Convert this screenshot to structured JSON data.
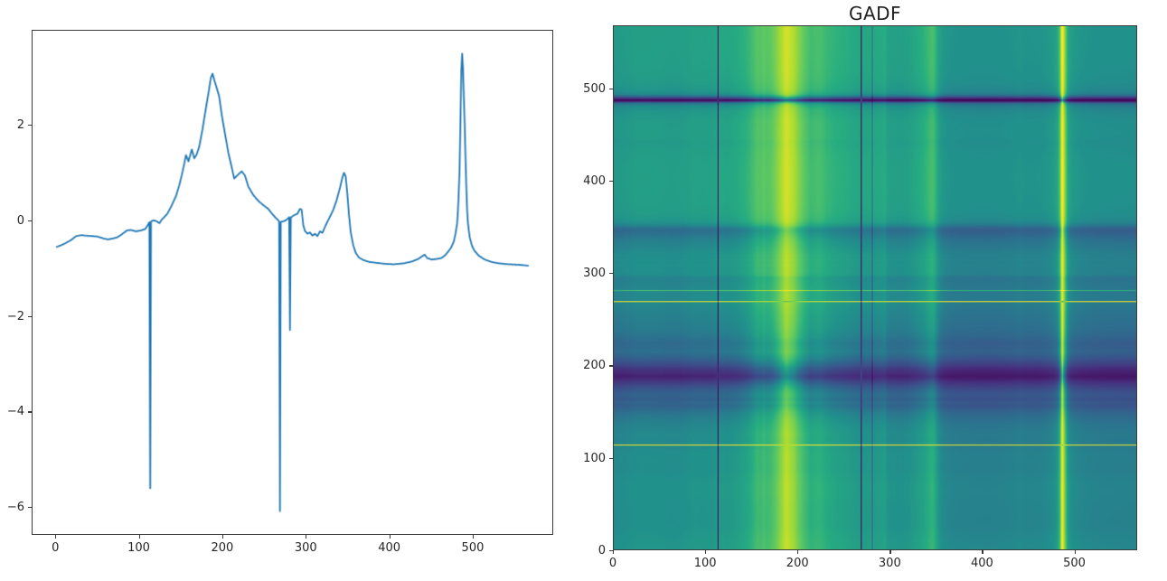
{
  "figure": {
    "background": "#ffffff",
    "axis_color": "#3c3c3c",
    "text_color": "#262626"
  },
  "chart_data": [
    {
      "type": "line",
      "title": "",
      "xlabel": "",
      "ylabel": "",
      "line_color": "#1f77b4",
      "line_width": 1.8,
      "x_tick_values": [
        0,
        100,
        200,
        300,
        400,
        500
      ],
      "x_tick_labels": [
        "0",
        "100",
        "200",
        "300",
        "400",
        "500"
      ],
      "y_tick_values": [
        2,
        0,
        -2,
        -4,
        -6
      ],
      "y_tick_labels": [
        "2",
        "0",
        "−2",
        "−4",
        "−6"
      ],
      "n_points": 569,
      "xlim": [
        -28.4,
        596.4
      ],
      "ylim": [
        -6.58,
        3.98
      ],
      "points": [
        [
          0,
          -0.56
        ],
        [
          6,
          -0.52
        ],
        [
          12,
          -0.47
        ],
        [
          18,
          -0.41
        ],
        [
          24,
          -0.33
        ],
        [
          30,
          -0.31
        ],
        [
          36,
          -0.32
        ],
        [
          44,
          -0.33
        ],
        [
          50,
          -0.34
        ],
        [
          57,
          -0.38
        ],
        [
          62,
          -0.4
        ],
        [
          68,
          -0.38
        ],
        [
          73,
          -0.36
        ],
        [
          79,
          -0.29
        ],
        [
          85,
          -0.21
        ],
        [
          90,
          -0.2
        ],
        [
          96,
          -0.23
        ],
        [
          102,
          -0.21
        ],
        [
          107,
          -0.18
        ],
        [
          110,
          -0.1
        ],
        [
          112,
          -0.04
        ],
        [
          113,
          -5.62
        ],
        [
          114,
          -0.02
        ],
        [
          117,
          0.0
        ],
        [
          121,
          -0.02
        ],
        [
          124,
          -0.06
        ],
        [
          127,
          0.02
        ],
        [
          130,
          0.07
        ],
        [
          134,
          0.15
        ],
        [
          139,
          0.32
        ],
        [
          144,
          0.51
        ],
        [
          148,
          0.74
        ],
        [
          151,
          0.95
        ],
        [
          154,
          1.19
        ],
        [
          156,
          1.37
        ],
        [
          159,
          1.24
        ],
        [
          163,
          1.49
        ],
        [
          166,
          1.3
        ],
        [
          169,
          1.39
        ],
        [
          172,
          1.55
        ],
        [
          176,
          1.92
        ],
        [
          179,
          2.25
        ],
        [
          183,
          2.67
        ],
        [
          186,
          3.0
        ],
        [
          188,
          3.08
        ],
        [
          190,
          2.95
        ],
        [
          193,
          2.78
        ],
        [
          196,
          2.6
        ],
        [
          199,
          2.22
        ],
        [
          203,
          1.81
        ],
        [
          207,
          1.42
        ],
        [
          211,
          1.12
        ],
        [
          214,
          0.88
        ],
        [
          218,
          0.95
        ],
        [
          223,
          1.03
        ],
        [
          227,
          0.94
        ],
        [
          231,
          0.71
        ],
        [
          237,
          0.53
        ],
        [
          243,
          0.41
        ],
        [
          249,
          0.32
        ],
        [
          255,
          0.24
        ],
        [
          259,
          0.15
        ],
        [
          263,
          0.07
        ],
        [
          266,
          0.02
        ],
        [
          268,
          -0.02
        ],
        [
          269,
          -6.1
        ],
        [
          270,
          -0.03
        ],
        [
          273,
          -0.02
        ],
        [
          276,
          0.0
        ],
        [
          279,
          0.05
        ],
        [
          280,
          0.07
        ],
        [
          281,
          -2.3
        ],
        [
          282,
          0.06
        ],
        [
          285,
          0.1
        ],
        [
          290,
          0.14
        ],
        [
          293,
          0.24
        ],
        [
          295,
          0.23
        ],
        [
          297,
          -0.1
        ],
        [
          299,
          -0.22
        ],
        [
          302,
          -0.28
        ],
        [
          305,
          -0.25
        ],
        [
          308,
          -0.32
        ],
        [
          311,
          -0.28
        ],
        [
          314,
          -0.33
        ],
        [
          317,
          -0.23
        ],
        [
          320,
          -0.26
        ],
        [
          324,
          -0.1
        ],
        [
          328,
          0.04
        ],
        [
          333,
          0.22
        ],
        [
          337,
          0.42
        ],
        [
          341,
          0.68
        ],
        [
          344,
          0.9
        ],
        [
          346,
          1.0
        ],
        [
          348,
          0.92
        ],
        [
          350,
          0.55
        ],
        [
          352,
          0.1
        ],
        [
          354,
          -0.25
        ],
        [
          357,
          -0.52
        ],
        [
          360,
          -0.68
        ],
        [
          364,
          -0.78
        ],
        [
          369,
          -0.83
        ],
        [
          376,
          -0.87
        ],
        [
          385,
          -0.89
        ],
        [
          395,
          -0.91
        ],
        [
          406,
          -0.92
        ],
        [
          418,
          -0.9
        ],
        [
          428,
          -0.86
        ],
        [
          435,
          -0.81
        ],
        [
          440,
          -0.75
        ],
        [
          443,
          -0.72
        ],
        [
          446,
          -0.79
        ],
        [
          451,
          -0.82
        ],
        [
          457,
          -0.81
        ],
        [
          463,
          -0.79
        ],
        [
          467,
          -0.74
        ],
        [
          471,
          -0.66
        ],
        [
          475,
          -0.56
        ],
        [
          478,
          -0.44
        ],
        [
          480,
          -0.28
        ],
        [
          482,
          -0.07
        ],
        [
          483,
          0.2
        ],
        [
          484,
          0.6
        ],
        [
          485,
          1.1
        ],
        [
          486,
          2.1
        ],
        [
          487,
          3.15
        ],
        [
          488,
          3.5
        ],
        [
          489,
          3.2
        ],
        [
          490,
          2.6
        ],
        [
          491,
          2.05
        ],
        [
          492,
          1.35
        ],
        [
          493,
          0.72
        ],
        [
          494,
          0.22
        ],
        [
          495,
          -0.06
        ],
        [
          497,
          -0.35
        ],
        [
          500,
          -0.54
        ],
        [
          503,
          -0.64
        ],
        [
          508,
          -0.74
        ],
        [
          515,
          -0.82
        ],
        [
          523,
          -0.87
        ],
        [
          532,
          -0.9
        ],
        [
          544,
          -0.92
        ],
        [
          556,
          -0.93
        ],
        [
          568,
          -0.95
        ]
      ]
    },
    {
      "type": "heatmap",
      "title": "GADF",
      "xlabel": "",
      "ylabel": "",
      "x_tick_values": [
        0,
        100,
        200,
        300,
        400,
        500
      ],
      "x_tick_labels": [
        "0",
        "100",
        "200",
        "300",
        "400",
        "500"
      ],
      "y_tick_values": [
        0,
        100,
        200,
        300,
        400,
        500
      ],
      "y_tick_labels": [
        "0",
        "100",
        "200",
        "300",
        "400",
        "500"
      ],
      "n": 569,
      "vmin": -1,
      "vmax": 1,
      "origin": "lower",
      "colormap": "viridis",
      "matrix_rule": "GADF[i][j] = sin(acos(s_i) - acos(s_j)), s = series of chart 0 min-max scaled to [-1,1]",
      "viridis_stops": [
        [
          0.0,
          "#440154"
        ],
        [
          0.125,
          "#472d7b"
        ],
        [
          0.25,
          "#3b528b"
        ],
        [
          0.375,
          "#2c728e"
        ],
        [
          0.5,
          "#21918c"
        ],
        [
          0.625,
          "#27ad81"
        ],
        [
          0.75,
          "#5cc863"
        ],
        [
          0.875,
          "#aadc32"
        ],
        [
          1.0,
          "#fde725"
        ]
      ]
    }
  ]
}
